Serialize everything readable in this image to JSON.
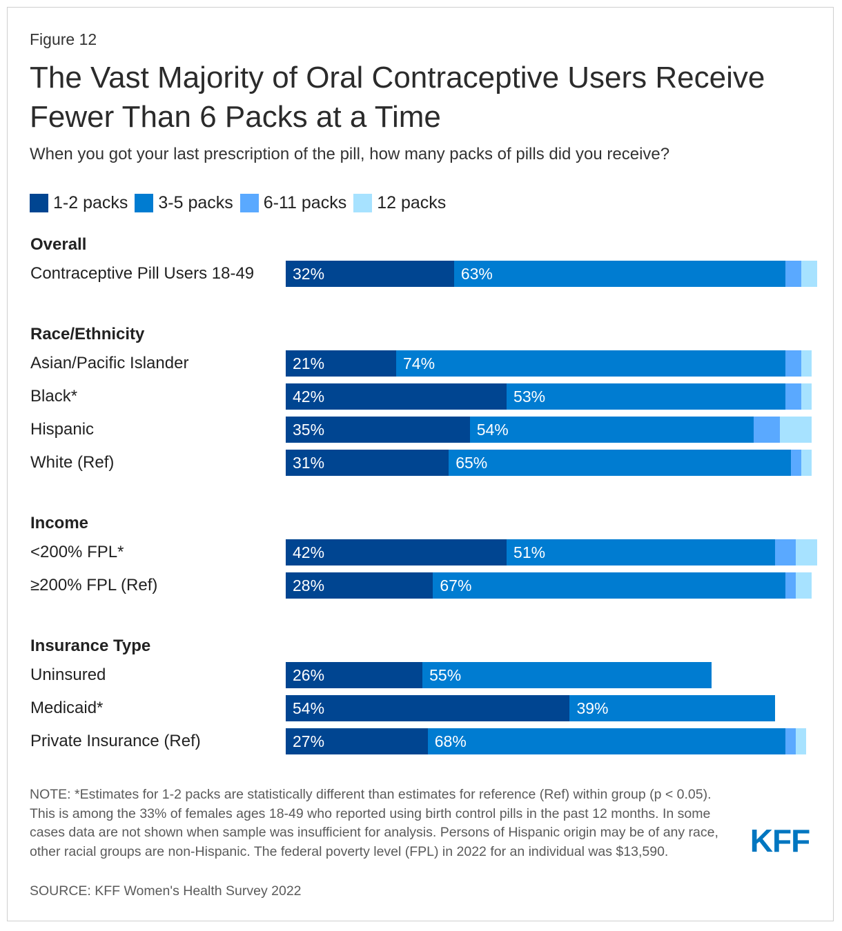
{
  "figure_label": "Figure 12",
  "title": "The Vast Majority of Oral Contraceptive Users Receive Fewer Than 6 Packs at a Time",
  "subtitle": "When you got your last prescription of the pill, how many packs of pills did you receive?",
  "colors": {
    "1-2 packs": "#004591",
    "3-5 packs": "#007cd1",
    "6-11 packs": "#5aa9ff",
    "12 packs": "#a7e2ff",
    "logo": "#0076c0"
  },
  "logo_text": "KFF",
  "note": "NOTE: *Estimates for 1-2 packs are statistically different than estimates for reference (Ref) within group (p < 0.05). This is among the 33% of females ages 18-49 who reported using birth control pills in the past 12 months. In some cases data are not shown when sample was insufficient for analysis. Persons of Hispanic origin may be of any race, other racial groups are non-Hispanic. The federal poverty level (FPL) in 2022 for an individual was $13,590.",
  "source": "SOURCE: KFF Women's Health Survey 2022",
  "chart_data": {
    "type": "bar",
    "orientation": "horizontal",
    "stacked": true,
    "legend_position": "top-left",
    "xlim": [
      0,
      100
    ],
    "series": [
      {
        "name": "1-2 packs"
      },
      {
        "name": "3-5 packs"
      },
      {
        "name": "6-11 packs"
      },
      {
        "name": "12 packs"
      }
    ],
    "groups": [
      {
        "name": "Overall",
        "rows": [
          {
            "label": "Contraceptive Pill Users 18-49",
            "values": [
              32,
              63,
              3,
              3
            ]
          }
        ]
      },
      {
        "name": "Race/Ethnicity",
        "rows": [
          {
            "label": "Asian/Pacific Islander",
            "values": [
              21,
              74,
              3,
              2
            ]
          },
          {
            "label": "Black*",
            "values": [
              42,
              53,
              3,
              2
            ]
          },
          {
            "label": "Hispanic",
            "values": [
              35,
              54,
              5,
              6
            ]
          },
          {
            "label": "White (Ref)",
            "values": [
              31,
              65,
              2,
              2
            ]
          }
        ]
      },
      {
        "name": "Income",
        "rows": [
          {
            "label": "<200% FPL*",
            "values": [
              42,
              51,
              4,
              4
            ]
          },
          {
            "label": "≥200% FPL (Ref)",
            "values": [
              28,
              67,
              2,
              3
            ]
          }
        ]
      },
      {
        "name": "Insurance Type",
        "rows": [
          {
            "label": "Uninsured",
            "values": [
              26,
              55,
              null,
              null
            ]
          },
          {
            "label": "Medicaid*",
            "values": [
              54,
              39,
              null,
              null
            ]
          },
          {
            "label": "Private Insurance (Ref)",
            "values": [
              27,
              68,
              2,
              2
            ]
          }
        ]
      }
    ]
  }
}
